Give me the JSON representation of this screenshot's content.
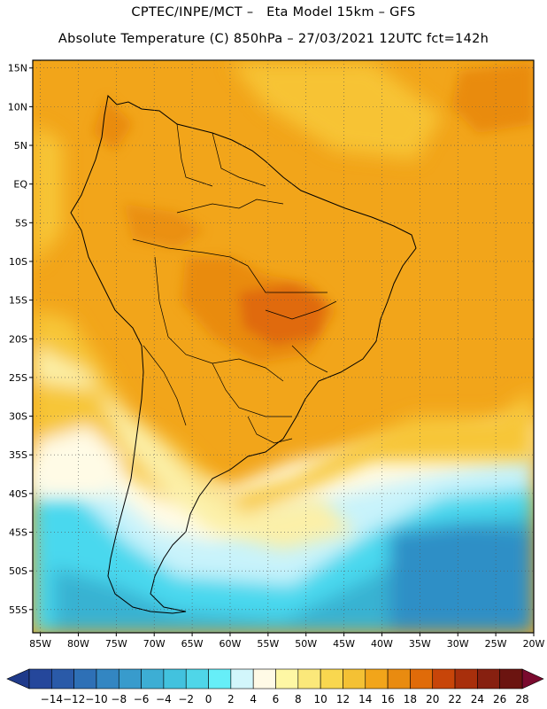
{
  "header": {
    "line1": "CPTEC/INPE/MCT –   Eta Model 15km – GFS",
    "line2": "Absolute Temperature (C) 850hPa – 27/03/2021 12UTC fct=142h"
  },
  "map": {
    "lat_labels": [
      "15N",
      "10N",
      "5N",
      "EQ",
      "5S",
      "10S",
      "15S",
      "20S",
      "25S",
      "30S",
      "35S",
      "40S",
      "45S",
      "50S",
      "55S"
    ],
    "lon_labels": [
      "85W",
      "80W",
      "75W",
      "70W",
      "65W",
      "60W",
      "55W",
      "50W",
      "45W",
      "40W",
      "35W",
      "30W",
      "25W",
      "20W"
    ],
    "lat_range": [
      -58,
      16
    ],
    "lon_range": [
      -86,
      -20
    ],
    "grid": true,
    "field_colors": {
      "hot": "#e0710f",
      "warm": "#f2a51a",
      "mild": "#f7c637",
      "pale": "#fcf0a8",
      "cream": "#fffbe6",
      "icy": "#c8f3fb",
      "cyan": "#48d8ee",
      "teal": "#38b2d2",
      "blue": "#2e8fc6",
      "land_line": "#000000"
    }
  },
  "colorbar": {
    "labels": [
      "-14",
      "-12",
      "-10",
      "-8",
      "-6",
      "-4",
      "-2",
      "0",
      "2",
      "4",
      "6",
      "8",
      "10",
      "12",
      "14",
      "16",
      "18",
      "20",
      "22",
      "24",
      "26",
      "28"
    ],
    "colors": [
      "#25479b",
      "#2a5aa8",
      "#2e70b6",
      "#3386c2",
      "#389bcc",
      "#3daed4",
      "#42c2de",
      "#4fd6e8",
      "#66eef8",
      "#d2f6fb",
      "#fffae6",
      "#fef7a4",
      "#fbe87a",
      "#f9d74f",
      "#f4c134",
      "#f2a51a",
      "#e98b10",
      "#e06b09",
      "#c84509",
      "#a82f0c",
      "#872010",
      "#6b1410"
    ],
    "low_arrow": "#1f3a8a",
    "high_arrow": "#7a0a2e"
  }
}
